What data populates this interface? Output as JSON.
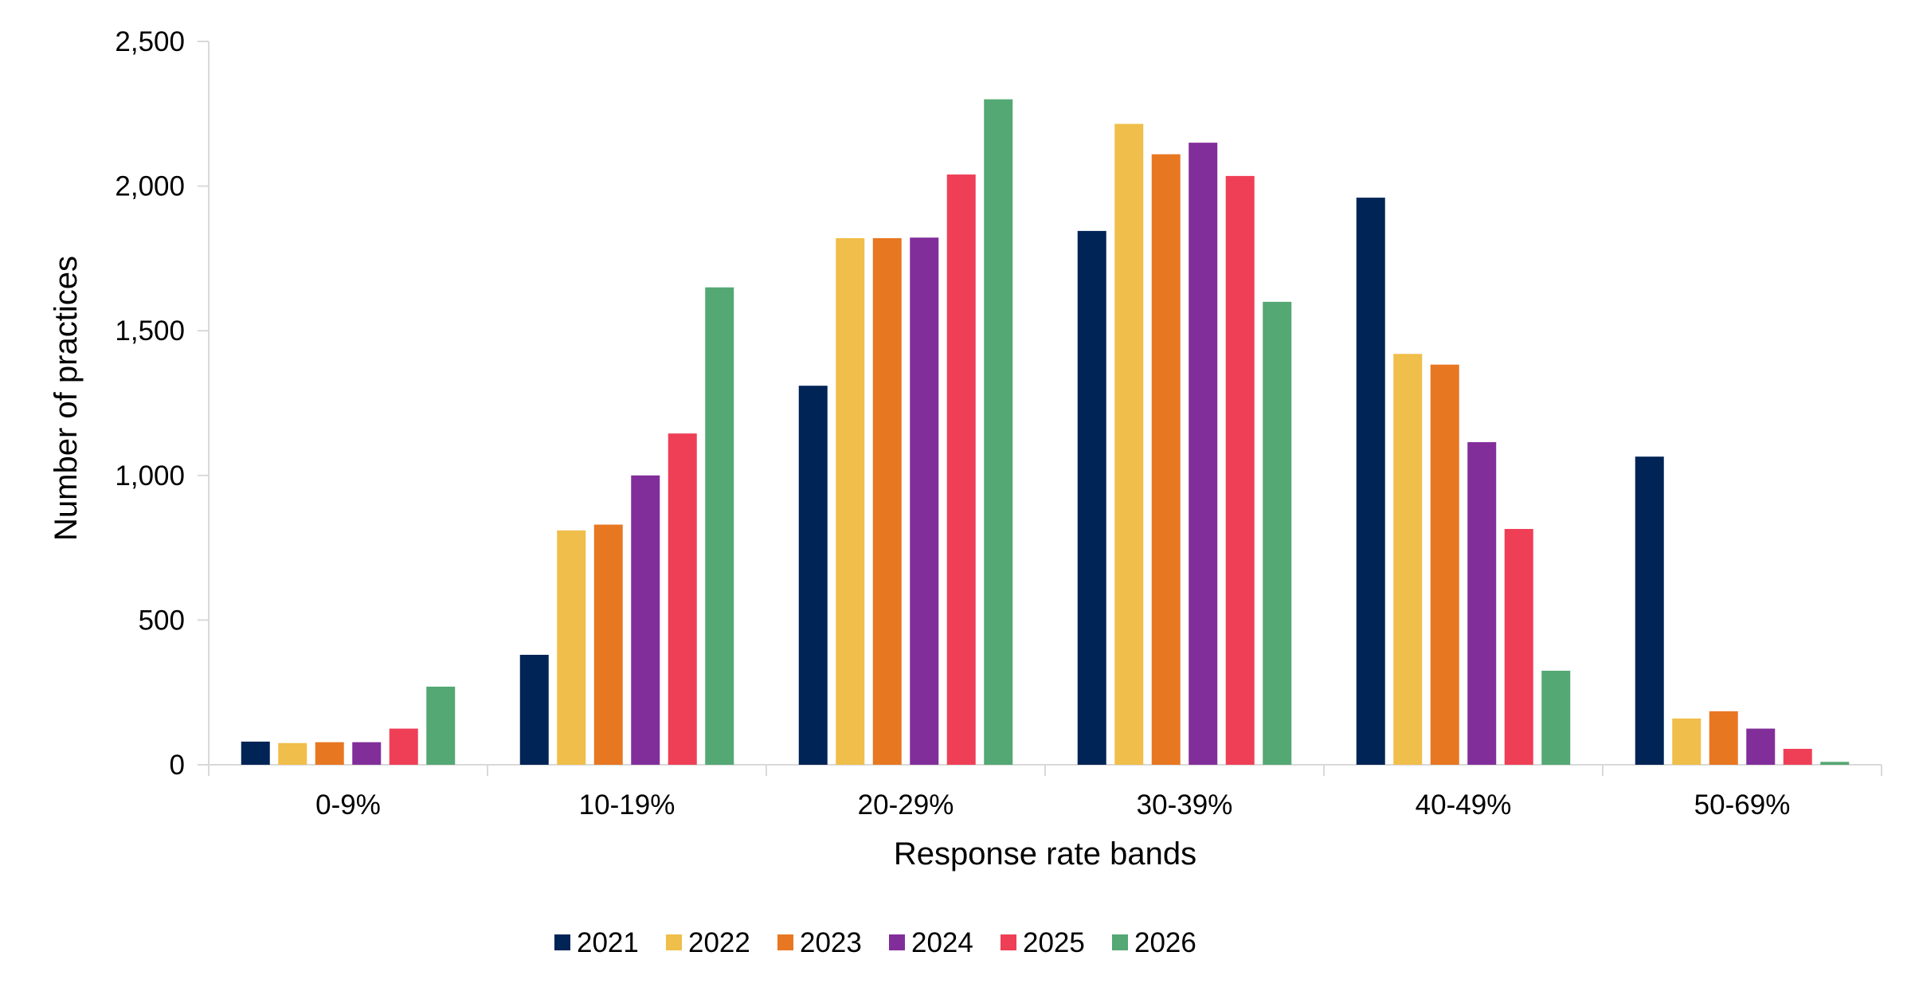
{
  "chart_data": {
    "type": "bar",
    "title": "",
    "xlabel": "Response rate bands",
    "ylabel": "Number of practices",
    "categories": [
      "0-9%",
      "10-19%",
      "20-29%",
      "30-39%",
      "40-49%",
      "50-69%"
    ],
    "ylim": [
      0,
      2500
    ],
    "yticks": [
      0,
      500,
      1000,
      1500,
      2000,
      2500
    ],
    "ytick_labels": [
      "0",
      "500",
      "1,000",
      "1,500",
      "2,000",
      "2,500"
    ],
    "grid": false,
    "legend_position": "bottom-center",
    "series": [
      {
        "name": "2021",
        "color": "#012456",
        "values": [
          80,
          380,
          1310,
          1845,
          1960,
          1065
        ]
      },
      {
        "name": "2022",
        "color": "#F0BE4A",
        "values": [
          75,
          810,
          1820,
          2215,
          1420,
          160
        ]
      },
      {
        "name": "2023",
        "color": "#E87722",
        "values": [
          78,
          830,
          1820,
          2110,
          1383,
          185
        ]
      },
      {
        "name": "2024",
        "color": "#822E9A",
        "values": [
          78,
          1000,
          1822,
          2150,
          1115,
          125
        ]
      },
      {
        "name": "2025",
        "color": "#EF3F57",
        "values": [
          125,
          1145,
          2040,
          2035,
          815,
          55
        ]
      },
      {
        "name": "2026",
        "color": "#54A873",
        "values": [
          270,
          1650,
          2300,
          1600,
          325,
          10
        ]
      }
    ]
  }
}
